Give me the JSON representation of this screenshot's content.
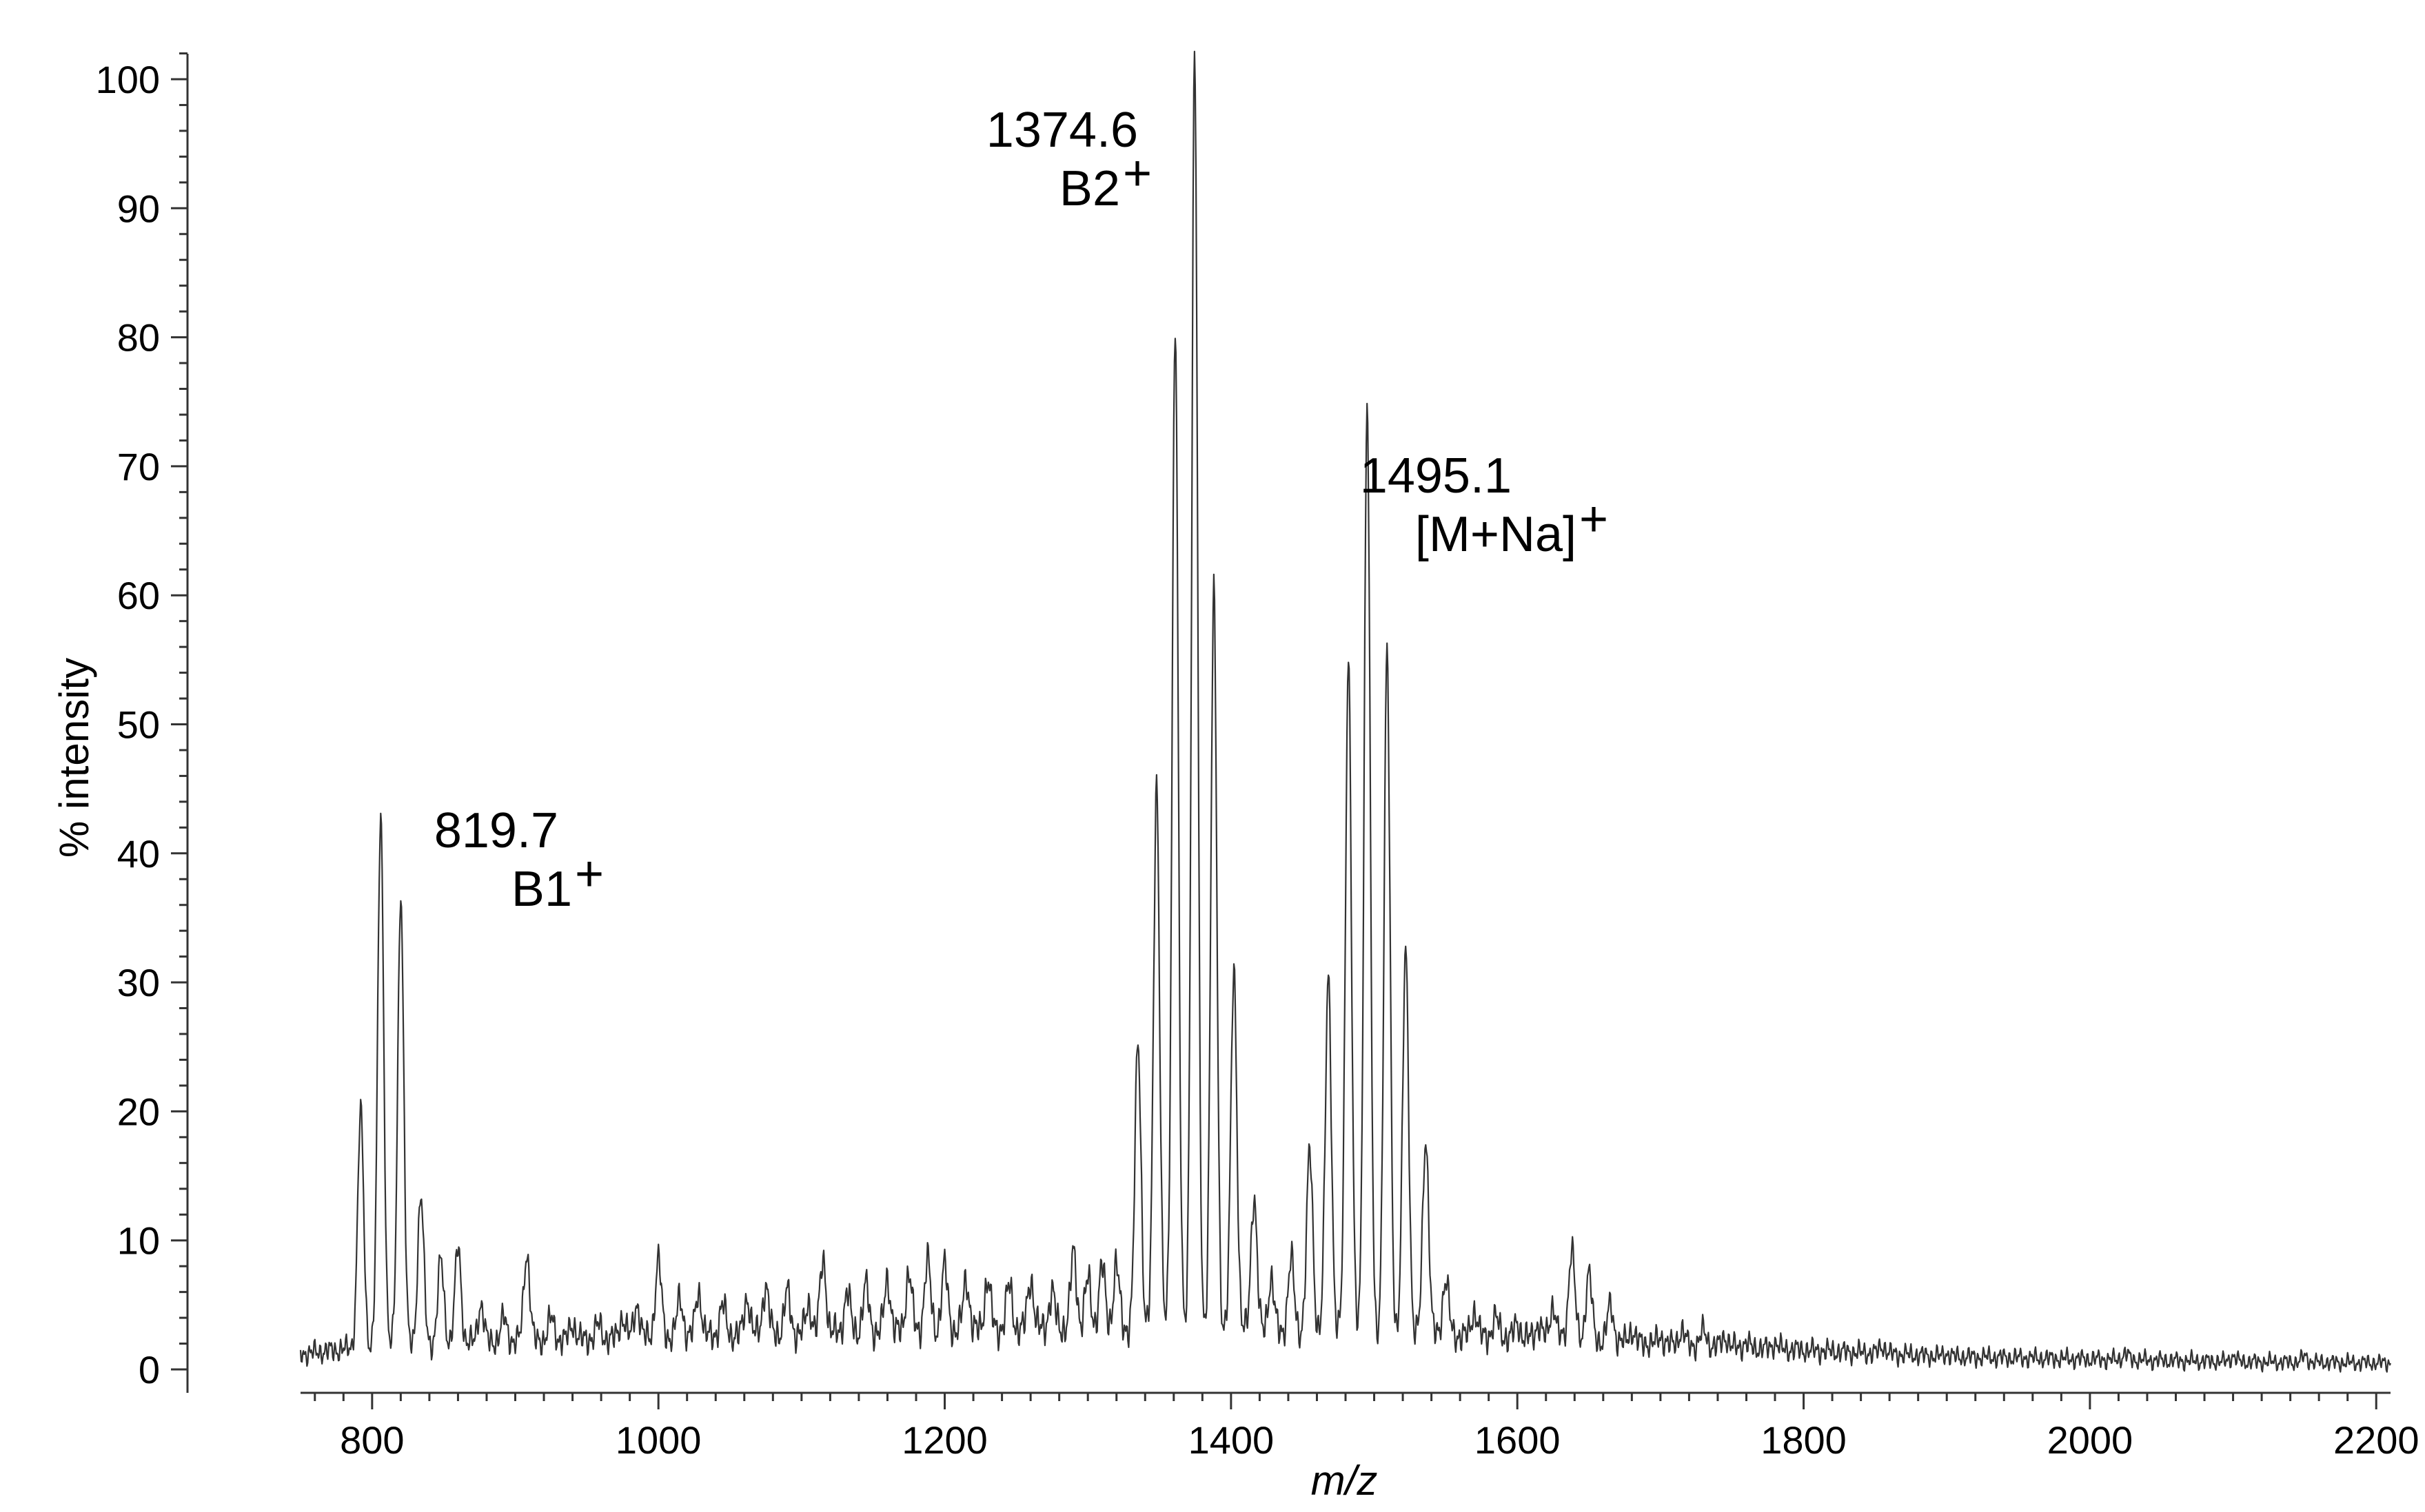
{
  "chart_data": {
    "type": "line",
    "title": "",
    "xlabel": "m/z",
    "ylabel": "% intensity",
    "xlim": [
      750,
      2210
    ],
    "ylim": [
      0,
      102
    ],
    "x_ticks": [
      800,
      1000,
      1200,
      1400,
      1600,
      1800,
      2000,
      2200
    ],
    "y_ticks": [
      0,
      10,
      20,
      30,
      40,
      50,
      60,
      70,
      80,
      90,
      100
    ],
    "grid": false,
    "legend": "none",
    "line_color": "#333333",
    "baseline_noise": [
      {
        "x": 750,
        "y": 1.2
      },
      {
        "x": 800,
        "y": 1.8
      },
      {
        "x": 900,
        "y": 2.2
      },
      {
        "x": 1000,
        "y": 2.5
      },
      {
        "x": 1100,
        "y": 2.8
      },
      {
        "x": 1200,
        "y": 3.0
      },
      {
        "x": 1300,
        "y": 3.2
      },
      {
        "x": 1400,
        "y": 3.0
      },
      {
        "x": 1500,
        "y": 2.8
      },
      {
        "x": 1600,
        "y": 2.5
      },
      {
        "x": 1700,
        "y": 2.0
      },
      {
        "x": 1800,
        "y": 1.5
      },
      {
        "x": 1900,
        "y": 1.0
      },
      {
        "x": 2000,
        "y": 0.8
      },
      {
        "x": 2100,
        "y": 0.6
      },
      {
        "x": 2210,
        "y": 0.5
      }
    ],
    "peaks": [
      {
        "x": 792,
        "y": 20
      },
      {
        "x": 806,
        "y": 43
      },
      {
        "x": 820,
        "y": 37
      },
      {
        "x": 834,
        "y": 13.5
      },
      {
        "x": 848,
        "y": 8.5
      },
      {
        "x": 860,
        "y": 9.5
      },
      {
        "x": 876,
        "y": 5
      },
      {
        "x": 892,
        "y": 4
      },
      {
        "x": 908,
        "y": 9
      },
      {
        "x": 925,
        "y": 4
      },
      {
        "x": 940,
        "y": 3.5
      },
      {
        "x": 958,
        "y": 3.5
      },
      {
        "x": 975,
        "y": 4
      },
      {
        "x": 985,
        "y": 5
      },
      {
        "x": 1000,
        "y": 8.5
      },
      {
        "x": 1015,
        "y": 5.5
      },
      {
        "x": 1028,
        "y": 6
      },
      {
        "x": 1045,
        "y": 5
      },
      {
        "x": 1062,
        "y": 5.5
      },
      {
        "x": 1075,
        "y": 6.5
      },
      {
        "x": 1090,
        "y": 6
      },
      {
        "x": 1105,
        "y": 5
      },
      {
        "x": 1115,
        "y": 8.5
      },
      {
        "x": 1132,
        "y": 6
      },
      {
        "x": 1145,
        "y": 6.5
      },
      {
        "x": 1160,
        "y": 7
      },
      {
        "x": 1175,
        "y": 7.5
      },
      {
        "x": 1188,
        "y": 8.5
      },
      {
        "x": 1200,
        "y": 8
      },
      {
        "x": 1215,
        "y": 7
      },
      {
        "x": 1230,
        "y": 7
      },
      {
        "x": 1245,
        "y": 6.5
      },
      {
        "x": 1260,
        "y": 7
      },
      {
        "x": 1275,
        "y": 6
      },
      {
        "x": 1290,
        "y": 9
      },
      {
        "x": 1300,
        "y": 7
      },
      {
        "x": 1310,
        "y": 8
      },
      {
        "x": 1320,
        "y": 8
      },
      {
        "x": 1335,
        "y": 25.5
      },
      {
        "x": 1348,
        "y": 45.5
      },
      {
        "x": 1361,
        "y": 81.5
      },
      {
        "x": 1374.6,
        "y": 102
      },
      {
        "x": 1388,
        "y": 60
      },
      {
        "x": 1402,
        "y": 31
      },
      {
        "x": 1416,
        "y": 13.5
      },
      {
        "x": 1428,
        "y": 7
      },
      {
        "x": 1442,
        "y": 8.5
      },
      {
        "x": 1455,
        "y": 17
      },
      {
        "x": 1468,
        "y": 30.5
      },
      {
        "x": 1482,
        "y": 55.5
      },
      {
        "x": 1495.1,
        "y": 75
      },
      {
        "x": 1509,
        "y": 55.5
      },
      {
        "x": 1522,
        "y": 32.5
      },
      {
        "x": 1536,
        "y": 18
      },
      {
        "x": 1550,
        "y": 7
      },
      {
        "x": 1570,
        "y": 4.5
      },
      {
        "x": 1585,
        "y": 4
      },
      {
        "x": 1600,
        "y": 3.5
      },
      {
        "x": 1615,
        "y": 3.5
      },
      {
        "x": 1625,
        "y": 5
      },
      {
        "x": 1638,
        "y": 9.5
      },
      {
        "x": 1650,
        "y": 7.5
      },
      {
        "x": 1665,
        "y": 5
      },
      {
        "x": 1680,
        "y": 3
      },
      {
        "x": 1700,
        "y": 2.5
      },
      {
        "x": 1715,
        "y": 3
      },
      {
        "x": 1730,
        "y": 3
      },
      {
        "x": 1745,
        "y": 2.5
      },
      {
        "x": 1760,
        "y": 2
      },
      {
        "x": 1780,
        "y": 2
      },
      {
        "x": 1800,
        "y": 1.5
      },
      {
        "x": 1855,
        "y": 1.8
      },
      {
        "x": 1900,
        "y": 1.2
      },
      {
        "x": 2025,
        "y": 1.2
      },
      {
        "x": 2100,
        "y": 1
      },
      {
        "x": 2150,
        "y": 1
      }
    ],
    "annotations": [
      {
        "id": "b1",
        "mz_text": "819.7",
        "ion_text": "B1",
        "charge": "+",
        "x": 819.7
      },
      {
        "id": "b2",
        "mz_text": "1374.6",
        "ion_text": "B2",
        "charge": "+",
        "x": 1374.6
      },
      {
        "id": "mna",
        "mz_text": "1495.1",
        "ion_text": "[M+Na]",
        "charge": "+",
        "x": 1495.1
      }
    ]
  }
}
